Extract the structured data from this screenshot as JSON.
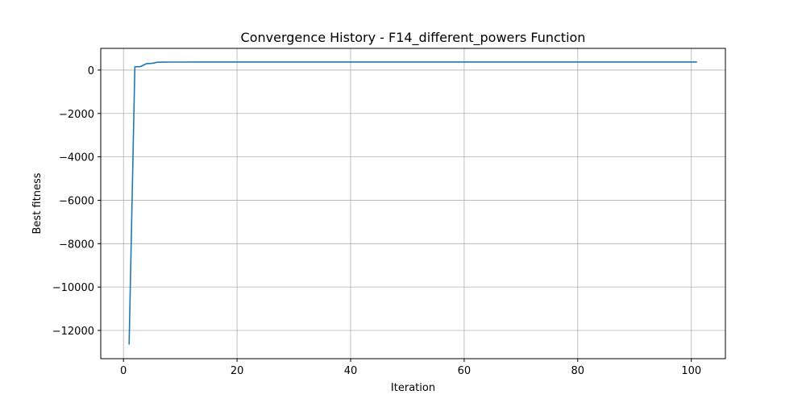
{
  "chart_data": {
    "type": "line",
    "title": "Convergence History - F14_different_powers Function",
    "xlabel": "Iteration",
    "ylabel": "Best fitness",
    "xlim": [
      -4,
      106
    ],
    "ylim": [
      -13300,
      1000
    ],
    "xticks": [
      0,
      20,
      40,
      60,
      80,
      100
    ],
    "yticks": [
      -12000,
      -10000,
      -8000,
      -6000,
      -4000,
      -2000,
      0
    ],
    "grid": true,
    "series": [
      {
        "color": "#1f77b4",
        "x": [
          1,
          2,
          3,
          4,
          5,
          6,
          7,
          8,
          10,
          15,
          20,
          30,
          40,
          60,
          80,
          101
        ],
        "y": [
          -12650,
          150,
          160,
          290,
          310,
          360,
          365,
          368,
          370,
          372,
          373,
          373,
          373,
          373,
          373,
          373
        ]
      }
    ]
  }
}
